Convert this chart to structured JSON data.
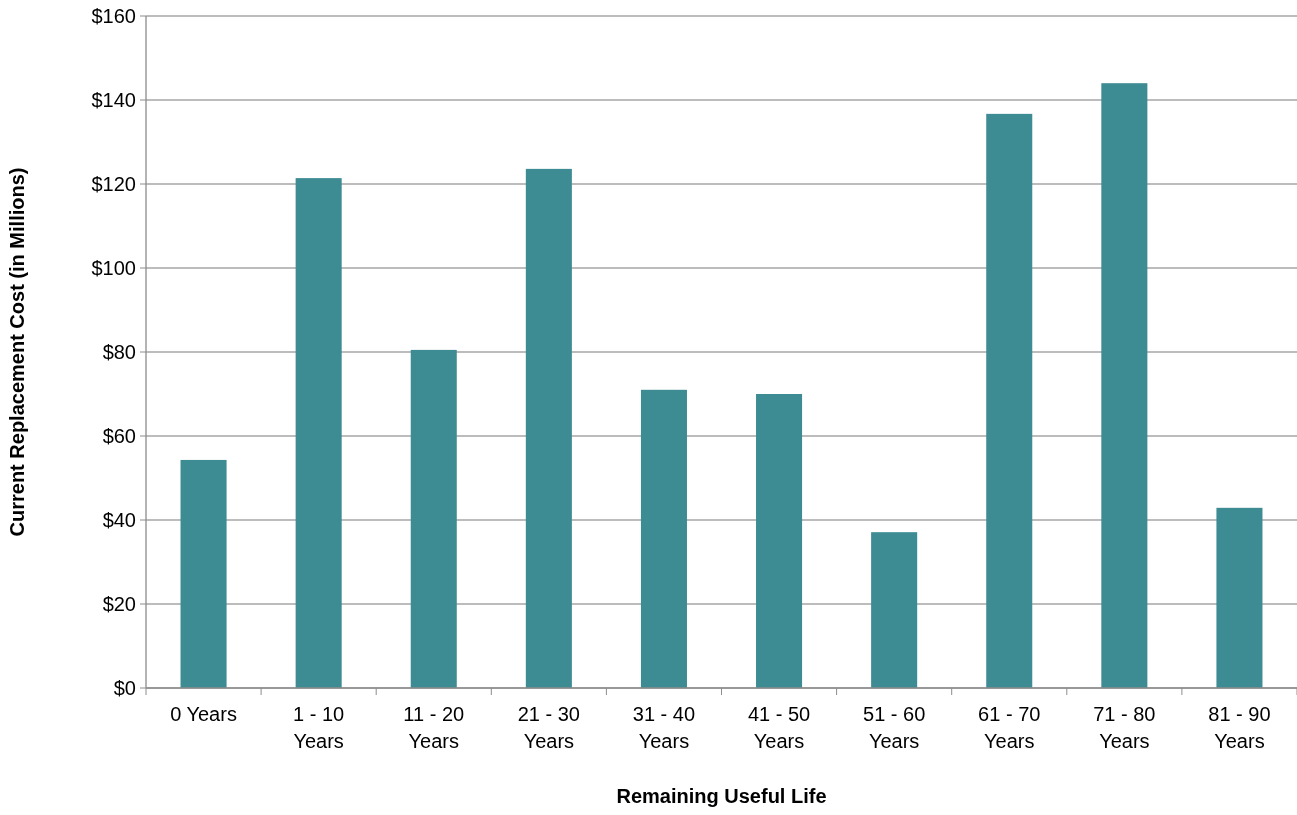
{
  "chart_data": {
    "type": "bar",
    "xlabel": "Remaining Useful Life",
    "ylabel": "Current Replacement Cost (in Millions)",
    "categories": [
      "0 Years",
      "1 - 10 Years",
      "11 - 20 Years",
      "21 - 30 Years",
      "31 - 40 Years",
      "41 - 50 Years",
      "51 - 60 Years",
      "61 - 70 Years",
      "71 - 80 Years",
      "81 - 90 Years"
    ],
    "values": [
      54.3,
      121.4,
      80.5,
      123.6,
      71,
      70,
      37.1,
      136.7,
      144,
      42.9
    ],
    "color": "#3d8b93",
    "ylim": [
      0,
      160
    ],
    "yticks": [
      {
        "value": 0,
        "label": "$0"
      },
      {
        "value": 20,
        "label": "$20"
      },
      {
        "value": 40,
        "label": "$40"
      },
      {
        "value": 60,
        "label": "$60"
      },
      {
        "value": 80,
        "label": "$80"
      },
      {
        "value": 100,
        "label": "$100"
      },
      {
        "value": 120,
        "label": "$120"
      },
      {
        "value": 140,
        "label": "$140"
      },
      {
        "value": 160,
        "label": "$160"
      }
    ],
    "grid": "y"
  }
}
